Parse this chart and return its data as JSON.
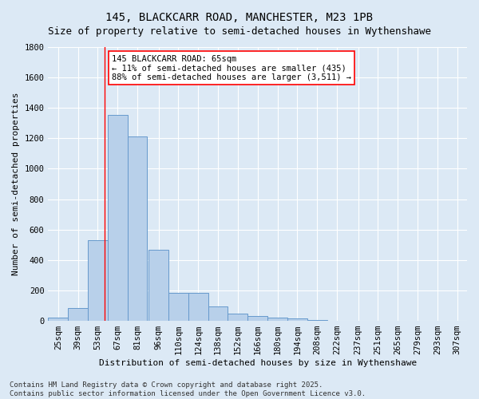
{
  "title": "145, BLACKCARR ROAD, MANCHESTER, M23 1PB",
  "subtitle": "Size of property relative to semi-detached houses in Wythenshawe",
  "xlabel": "Distribution of semi-detached houses by size in Wythenshawe",
  "ylabel": "Number of semi-detached properties",
  "bar_color": "#b8d0ea",
  "bar_edge_color": "#6699cc",
  "background_color": "#dce9f5",
  "annotation_text": "145 BLACKCARR ROAD: 65sqm\n← 11% of semi-detached houses are smaller (435)\n88% of semi-detached houses are larger (3,511) →",
  "vline_x": 65,
  "categories": [
    "25sqm",
    "39sqm",
    "53sqm",
    "67sqm",
    "81sqm",
    "96sqm",
    "110sqm",
    "124sqm",
    "138sqm",
    "152sqm",
    "166sqm",
    "180sqm",
    "194sqm",
    "208sqm",
    "222sqm",
    "237sqm",
    "251sqm",
    "265sqm",
    "279sqm",
    "293sqm",
    "307sqm"
  ],
  "bin_edges": [
    25,
    39,
    53,
    67,
    81,
    96,
    110,
    124,
    138,
    152,
    166,
    180,
    194,
    208,
    222,
    237,
    251,
    265,
    279,
    293,
    307
  ],
  "bin_width": 14,
  "values": [
    20,
    85,
    530,
    1355,
    1215,
    465,
    185,
    185,
    95,
    50,
    30,
    20,
    15,
    5,
    2,
    1,
    0,
    0,
    0,
    0,
    0
  ],
  "ylim": [
    0,
    1800
  ],
  "yticks": [
    0,
    200,
    400,
    600,
    800,
    1000,
    1200,
    1400,
    1600,
    1800
  ],
  "footnote": "Contains HM Land Registry data © Crown copyright and database right 2025.\nContains public sector information licensed under the Open Government Licence v3.0.",
  "title_fontsize": 10,
  "subtitle_fontsize": 9,
  "axis_label_fontsize": 8,
  "tick_fontsize": 7.5,
  "annotation_fontsize": 7.5,
  "footnote_fontsize": 6.5
}
